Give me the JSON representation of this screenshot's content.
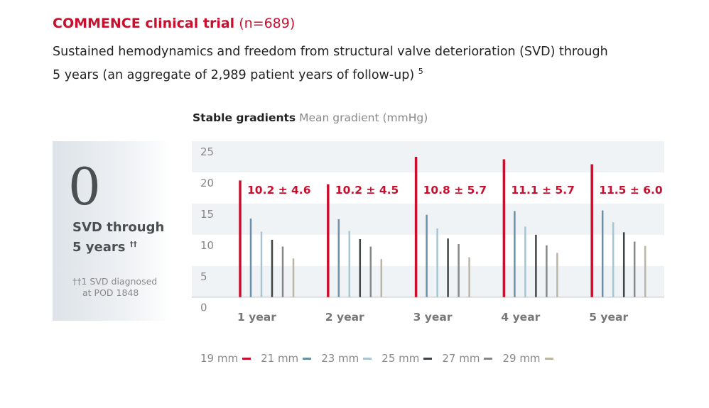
{
  "header": {
    "title_bold": "COMMENCE clinical trial",
    "title_n": "(n=689)",
    "subtitle_line1": "Sustained hemodynamics and freedom from structural valve deterioration (SVD) through",
    "subtitle_line2": "5 years (an aggregate of 2,989 patient years of follow-up)",
    "subtitle_ref": "5"
  },
  "svd_panel": {
    "value": "0",
    "line1": "SVD through",
    "line2": "5 years",
    "line2_mark": "††",
    "note_mark": "††",
    "note_line1": "1 SVD diagnosed",
    "note_line2": "at POD 1848"
  },
  "chart_data": {
    "type": "bar",
    "title": "Stable gradients",
    "ylabel": "Mean gradient (mmHg)",
    "ylim": [
      0,
      25
    ],
    "yticks": [
      "0",
      "5",
      "10",
      "15",
      "20",
      "25"
    ],
    "grid": "alternating bands",
    "legend_placement": "bottom",
    "categories": [
      "1 year",
      "2 year",
      "3 year",
      "4 year",
      "5 year"
    ],
    "annotations": [
      "10.2 ± 4.6",
      "10.2 ± 4.5",
      "10.8 ± 5.7",
      "11.1 ± 5.7",
      "11.5 ± 6.0"
    ],
    "series": [
      {
        "name": "19 mm",
        "color": "#c8102e",
        "values": [
          18.7,
          18.1,
          22.5,
          22.1,
          21.3
        ]
      },
      {
        "name": "21 mm",
        "color": "#6a8fa8",
        "values": [
          12.6,
          12.5,
          13.2,
          13.8,
          13.9
        ]
      },
      {
        "name": "23 mm",
        "color": "#a9c4cf",
        "values": [
          10.5,
          10.6,
          11.0,
          11.3,
          12.0
        ]
      },
      {
        "name": "25 mm",
        "color": "#3f4446",
        "values": [
          9.2,
          9.3,
          9.4,
          10.0,
          10.4
        ]
      },
      {
        "name": "27 mm",
        "color": "#858889",
        "values": [
          8.1,
          8.1,
          8.5,
          8.3,
          8.9
        ]
      },
      {
        "name": "29 mm",
        "color": "#bdb5a3",
        "values": [
          6.2,
          6.1,
          6.4,
          7.1,
          8.2
        ]
      }
    ]
  }
}
